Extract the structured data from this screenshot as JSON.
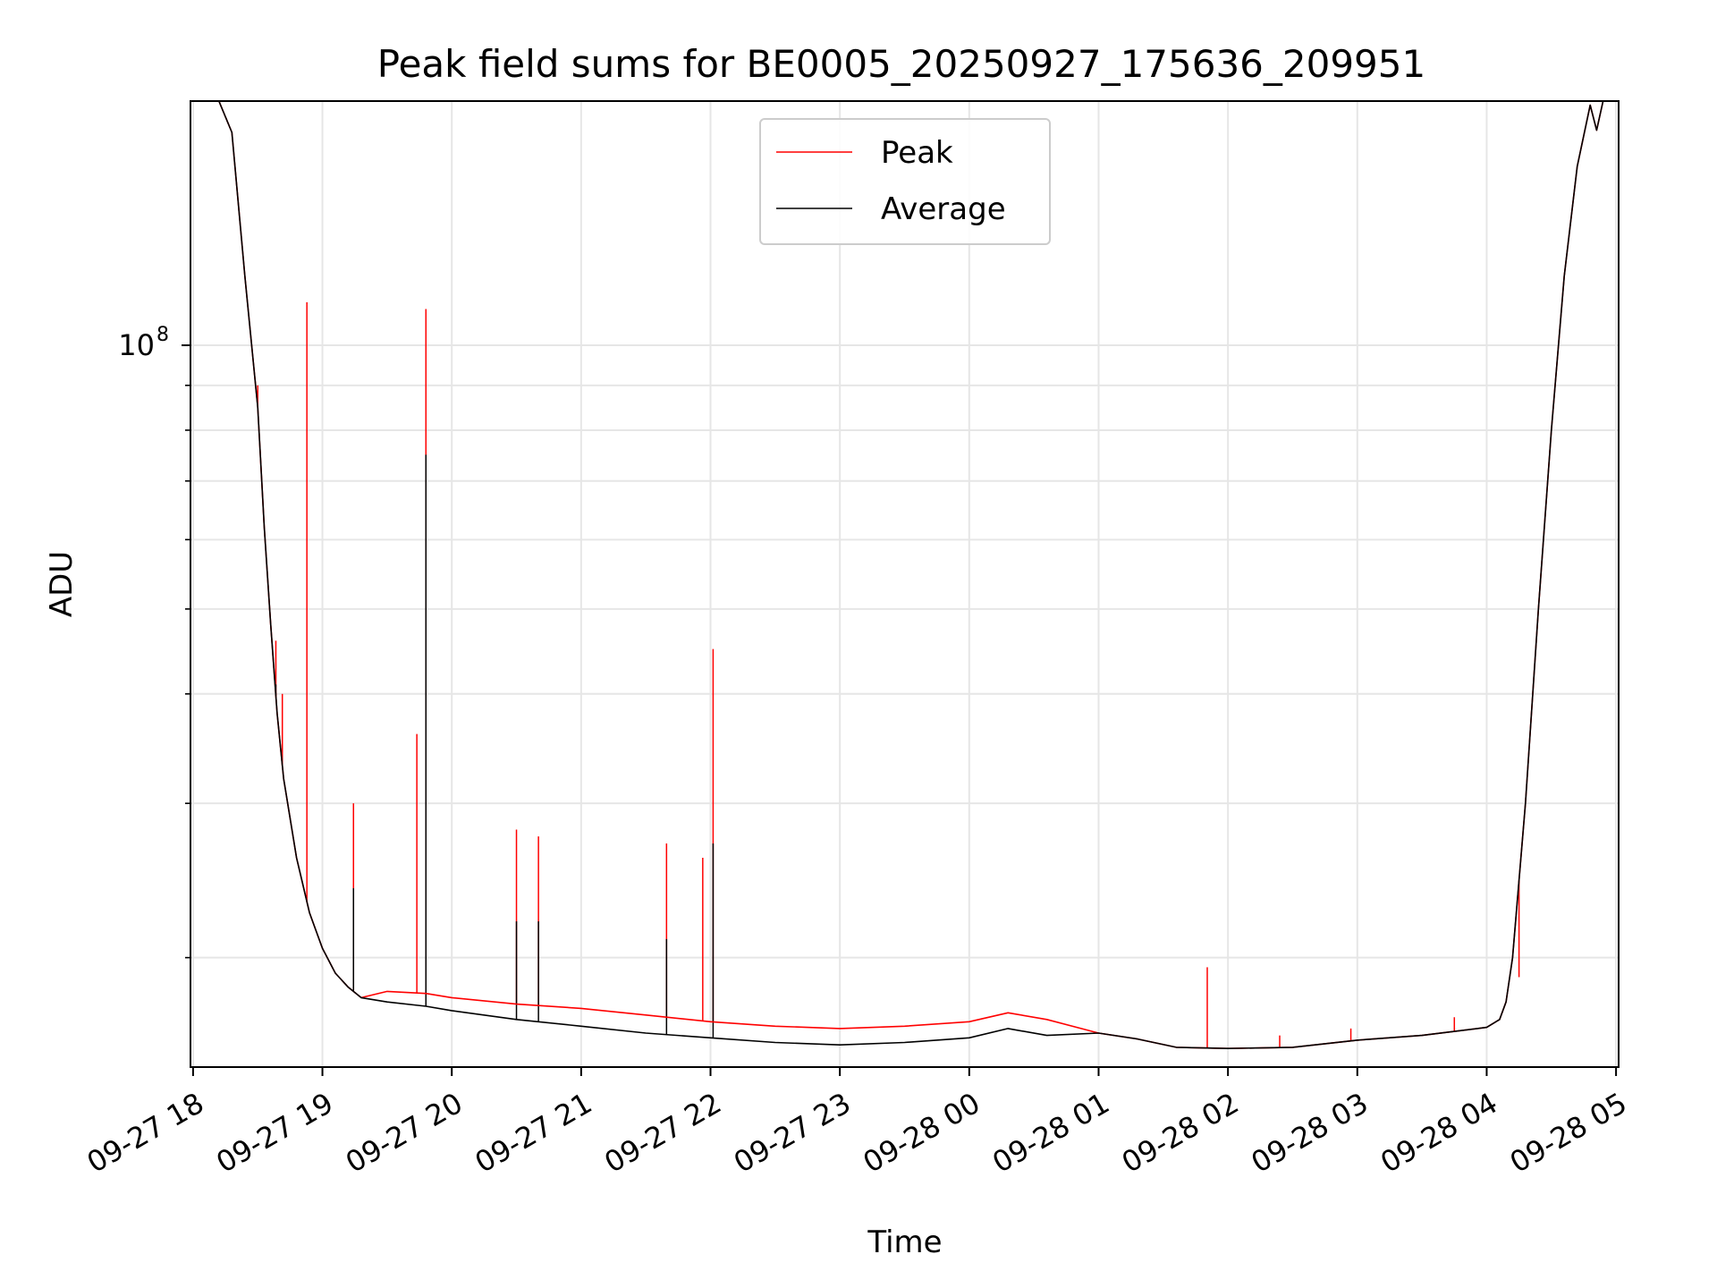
{
  "chart_data": {
    "type": "line",
    "title": "Peak field sums for BE0005_20250927_175636_209951",
    "xlabel": "Time",
    "ylabel": "ADU",
    "yscale": "log",
    "ylim": [
      15000000,
      190000000
    ],
    "xlim": [
      -0.02,
      11.02
    ],
    "x_tick_labels": [
      "09-27 18",
      "09-27 19",
      "09-27 20",
      "09-27 21",
      "09-27 22",
      "09-27 23",
      "09-28 00",
      "09-28 01",
      "09-28 02",
      "09-28 03",
      "09-28 04",
      "09-28 05"
    ],
    "x_tick_values": [
      0,
      1,
      2,
      3,
      4,
      5,
      6,
      7,
      8,
      9,
      10,
      11
    ],
    "y_major_ticks": [
      {
        "value": 100000000,
        "base": "10",
        "exponent": "8"
      }
    ],
    "y_minor_ticks": [
      20000000,
      30000000,
      40000000,
      50000000,
      60000000,
      70000000,
      80000000,
      90000000,
      200000000
    ],
    "grid": true,
    "legend": {
      "location": "upper-center",
      "entries": [
        {
          "label": "Peak",
          "color": "#ff0000"
        },
        {
          "label": "Average",
          "color": "#000000"
        }
      ]
    },
    "series": [
      {
        "name": "Average",
        "color": "#000000",
        "x": [
          -0.02,
          0.2,
          0.3,
          0.4,
          0.5,
          0.55,
          0.6,
          0.65,
          0.7,
          0.8,
          0.9,
          1.0,
          1.1,
          1.2,
          1.3,
          1.5,
          1.8,
          2.0,
          2.5,
          3.0,
          3.5,
          4.0,
          4.5,
          5.0,
          5.5,
          6.0,
          6.3,
          6.6,
          7.0,
          7.3,
          7.6,
          8.0,
          8.5,
          9.0,
          9.5,
          10.0,
          10.1,
          10.15,
          10.2,
          10.3,
          10.4,
          10.5,
          10.6,
          10.7,
          10.8,
          10.85,
          10.9,
          11.02
        ],
        "values": [
          190000000,
          190000000,
          175000000,
          120000000,
          85000000,
          62000000,
          48000000,
          38000000,
          32000000,
          26000000,
          22500000,
          20500000,
          19200000,
          18500000,
          18000000,
          17800000,
          17600000,
          17400000,
          17000000,
          16700000,
          16400000,
          16200000,
          16000000,
          15900000,
          16000000,
          16200000,
          16600000,
          16300000,
          16400000,
          16150000,
          15800000,
          15750000,
          15800000,
          16100000,
          16300000,
          16650000,
          17000000,
          17800000,
          20000000,
          30000000,
          50000000,
          80000000,
          120000000,
          160000000,
          188000000,
          176000000,
          190000000,
          190000000
        ]
      },
      {
        "name": "Peak",
        "color": "#ff0000",
        "x": [
          -0.02,
          0.2,
          0.3,
          0.4,
          0.5,
          0.55,
          0.6,
          0.65,
          0.7,
          0.8,
          0.9,
          1.0,
          1.1,
          1.2,
          1.3,
          1.5,
          1.8,
          2.0,
          2.5,
          3.0,
          3.5,
          4.0,
          4.5,
          5.0,
          5.5,
          6.0,
          6.3,
          6.6,
          7.0,
          7.3,
          7.6,
          8.0,
          8.5,
          9.0,
          9.5,
          10.0,
          10.1,
          10.15,
          10.2,
          10.3,
          10.4,
          10.5,
          10.6,
          10.7,
          10.8,
          10.85,
          10.9,
          11.02
        ],
        "values": [
          190000000,
          190000000,
          175000000,
          120000000,
          85000000,
          62000000,
          48000000,
          38000000,
          32000000,
          26000000,
          22500000,
          20500000,
          19200000,
          18500000,
          18000000,
          18300000,
          18200000,
          18000000,
          17700000,
          17500000,
          17200000,
          16900000,
          16700000,
          16600000,
          16700000,
          16900000,
          17300000,
          17000000,
          16400000,
          16150000,
          15800000,
          15750000,
          15800000,
          16100000,
          16300000,
          16650000,
          17000000,
          17800000,
          20000000,
          30000000,
          50000000,
          80000000,
          120000000,
          160000000,
          188000000,
          176000000,
          190000000,
          190000000
        ]
      }
    ],
    "spikes": [
      {
        "series": "Peak",
        "x": 0.5,
        "value": 90000000
      },
      {
        "series": "Peak",
        "x": 0.64,
        "value": 46000000
      },
      {
        "series": "Peak",
        "x": 0.69,
        "value": 40000000
      },
      {
        "series": "Peak",
        "x": 0.88,
        "value": 112000000
      },
      {
        "series": "Peak",
        "x": 1.24,
        "value": 30000000
      },
      {
        "series": "Peak",
        "x": 1.73,
        "value": 36000000
      },
      {
        "series": "Peak",
        "x": 1.8,
        "value": 110000000
      },
      {
        "series": "Peak",
        "x": 2.5,
        "value": 28000000
      },
      {
        "series": "Peak",
        "x": 2.67,
        "value": 27500000
      },
      {
        "series": "Peak",
        "x": 3.66,
        "value": 27000000
      },
      {
        "series": "Peak",
        "x": 3.94,
        "value": 26000000
      },
      {
        "series": "Peak",
        "x": 4.02,
        "value": 45000000
      },
      {
        "series": "Peak",
        "x": 7.84,
        "value": 19500000
      },
      {
        "series": "Peak",
        "x": 8.4,
        "value": 16300000
      },
      {
        "series": "Peak",
        "x": 8.95,
        "value": 16600000
      },
      {
        "series": "Peak",
        "x": 9.75,
        "value": 17100000
      },
      {
        "series": "Peak",
        "x": 10.25,
        "value": 19000000
      },
      {
        "series": "Average",
        "x": 0.64,
        "value": 41000000
      },
      {
        "series": "Average",
        "x": 1.24,
        "value": 24000000
      },
      {
        "series": "Average",
        "x": 1.8,
        "value": 75000000
      },
      {
        "series": "Average",
        "x": 2.5,
        "value": 22000000
      },
      {
        "series": "Average",
        "x": 2.67,
        "value": 22000000
      },
      {
        "series": "Average",
        "x": 3.66,
        "value": 21000000
      },
      {
        "series": "Average",
        "x": 4.02,
        "value": 27000000
      }
    ]
  }
}
